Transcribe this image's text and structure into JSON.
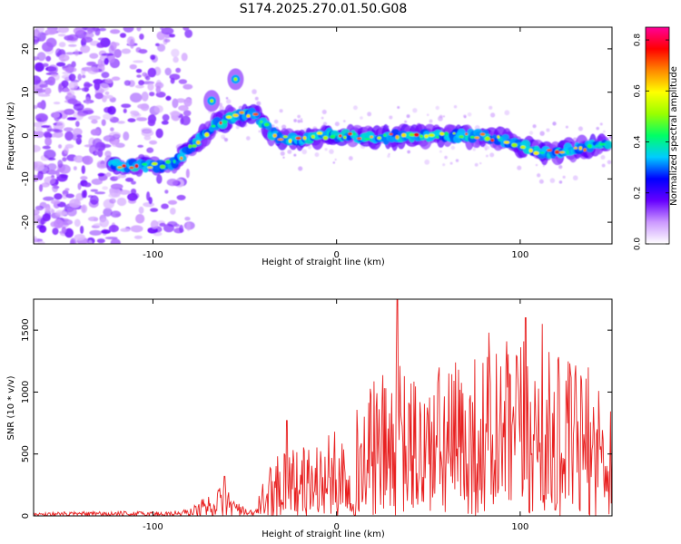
{
  "page": {
    "title": "S174.2025.270.01.50.G08"
  },
  "chart_data": [
    {
      "type": "heatmap",
      "title": "S174.2025.270.01.50.G08",
      "xlabel": "Height of straight line (km)",
      "ylabel": "Frequency (Hz)",
      "xlim": [
        -165,
        150
      ],
      "ylim": [
        -25,
        25
      ],
      "x_ticks": [
        -100,
        0,
        100
      ],
      "x_tick_labels": [
        "-100",
        "0",
        "100"
      ],
      "y_ticks": [
        -20,
        -10,
        0,
        10,
        20
      ],
      "y_tick_labels": [
        "-20",
        "-10",
        "0",
        "10",
        "20"
      ],
      "colorbar": {
        "label": "Normalized spectral amplitude",
        "range": [
          0,
          0.85
        ],
        "ticks": [
          0.0,
          0.2,
          0.4,
          0.6,
          0.8
        ],
        "tick_labels": [
          "0.0",
          "0.2",
          "0.4",
          "0.6",
          "0.8"
        ],
        "colors": [
          "#ffffff",
          "#cc99ff",
          "#6600ff",
          "#0000ff",
          "#00ccff",
          "#00ff66",
          "#99ff00",
          "#ffff00",
          "#ff8800",
          "#ff0000",
          "#ff0099"
        ]
      },
      "ridge": {
        "x": [
          -120,
          -110,
          -100,
          -90,
          -85,
          -80,
          -75,
          -70,
          -65,
          -60,
          -55,
          -50,
          -45,
          -40,
          -35,
          -30,
          -25,
          -20,
          -10,
          0,
          10,
          20,
          40,
          60,
          80,
          100,
          110,
          120,
          130,
          140,
          147
        ],
        "y": [
          -7,
          -7,
          -7,
          -6.5,
          -5,
          -3,
          -1,
          1,
          3,
          3.5,
          4.5,
          5,
          5,
          3,
          0.5,
          -0.5,
          -1,
          -1,
          0,
          0,
          0,
          -0.5,
          0,
          0,
          0,
          -2,
          -4,
          -4,
          -3,
          -2.5,
          -2
        ]
      },
      "side_lobes": [
        {
          "x": -55,
          "y": 13
        },
        {
          "x": -68,
          "y": 8
        }
      ]
    },
    {
      "type": "line",
      "xlabel": "Height of straight line (km)",
      "ylabel": "SNR (10 * v/v)",
      "xlim": [
        -165,
        150
      ],
      "ylim": [
        0,
        1750
      ],
      "x_ticks": [
        -100,
        0,
        100
      ],
      "x_tick_labels": [
        "-100",
        "0",
        "100"
      ],
      "y_ticks": [
        0,
        500,
        1000,
        1500
      ],
      "y_tick_labels": [
        "0",
        "500",
        "1000",
        "1500"
      ],
      "series": [
        {
          "name": "SNR",
          "color": "#e82020",
          "envelope_x": [
            -165,
            -90,
            -80,
            -70,
            -60,
            -55,
            -50,
            -45,
            -40,
            -30,
            -25,
            -20,
            -10,
            0,
            10,
            20,
            30,
            35,
            40,
            50,
            60,
            80,
            90,
            100,
            110,
            120,
            130,
            140,
            150
          ],
          "envelope_y": [
            30,
            40,
            60,
            180,
            260,
            150,
            60,
            40,
            280,
            620,
            600,
            550,
            620,
            700,
            850,
            1100,
            1200,
            1250,
            1150,
            1200,
            1250,
            1350,
            1400,
            1450,
            1380,
            1300,
            1250,
            1200,
            1100
          ],
          "peaks": [
            {
              "x": 33,
              "y": 1750
            },
            {
              "x": 103,
              "y": 1600
            },
            {
              "x": 112,
              "y": 1550
            },
            {
              "x": 83,
              "y": 1480
            },
            {
              "x": -27,
              "y": 770
            },
            {
              "x": -61,
              "y": 320
            }
          ]
        }
      ]
    }
  ]
}
